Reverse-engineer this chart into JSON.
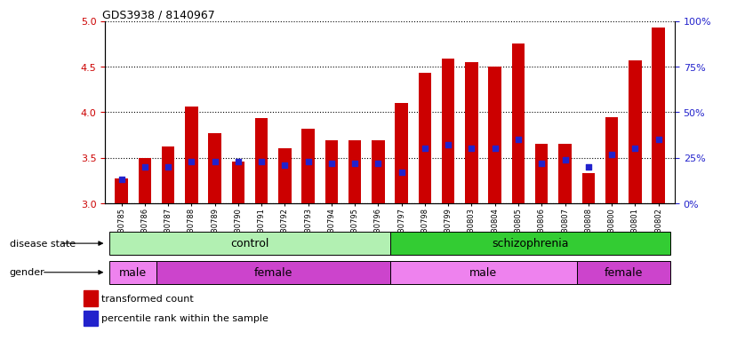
{
  "title": "GDS3938 / 8140967",
  "samples": [
    "GSM630785",
    "GSM630786",
    "GSM630787",
    "GSM630788",
    "GSM630789",
    "GSM630790",
    "GSM630791",
    "GSM630792",
    "GSM630793",
    "GSM630794",
    "GSM630795",
    "GSM630796",
    "GSM630797",
    "GSM630798",
    "GSM630799",
    "GSM630803",
    "GSM630804",
    "GSM630805",
    "GSM630806",
    "GSM630807",
    "GSM630808",
    "GSM630800",
    "GSM630801",
    "GSM630802"
  ],
  "bar_values": [
    3.27,
    3.5,
    3.62,
    4.06,
    3.77,
    3.46,
    3.93,
    3.6,
    3.82,
    3.69,
    3.69,
    3.69,
    4.1,
    4.43,
    4.59,
    4.55,
    4.5,
    4.75,
    3.65,
    3.65,
    3.33,
    3.94,
    4.57,
    4.93
  ],
  "percentile_values": [
    13,
    20,
    20,
    23,
    23,
    23,
    23,
    21,
    23,
    22,
    22,
    22,
    17,
    30,
    32,
    30,
    30,
    35,
    22,
    24,
    20,
    27,
    30,
    35
  ],
  "bar_color": "#cc0000",
  "dot_color": "#2222cc",
  "ylim_left": [
    3.0,
    5.0
  ],
  "ylim_right": [
    0,
    100
  ],
  "yticks_left": [
    3.0,
    3.5,
    4.0,
    4.5,
    5.0
  ],
  "yticks_right": [
    0,
    25,
    50,
    75,
    100
  ],
  "disease_state_groups": [
    {
      "label": "control",
      "start": 0,
      "end": 12,
      "color": "#b2f0b2"
    },
    {
      "label": "schizophrenia",
      "start": 12,
      "end": 24,
      "color": "#33cc33"
    }
  ],
  "gender_groups": [
    {
      "label": "male",
      "start": 0,
      "end": 2,
      "color": "#ee82ee"
    },
    {
      "label": "female",
      "start": 2,
      "end": 12,
      "color": "#cc44cc"
    },
    {
      "label": "male",
      "start": 12,
      "end": 20,
      "color": "#ee82ee"
    },
    {
      "label": "female",
      "start": 20,
      "end": 24,
      "color": "#cc44cc"
    }
  ],
  "legend_items": [
    {
      "label": "transformed count",
      "color": "#cc0000"
    },
    {
      "label": "percentile rank within the sample",
      "color": "#2222cc"
    }
  ],
  "grid_color": "black",
  "label_color_left": "#cc0000",
  "label_color_right": "#2222cc",
  "disease_state_label": "disease state",
  "gender_label": "gender",
  "bg_color": "#f0f0f0"
}
